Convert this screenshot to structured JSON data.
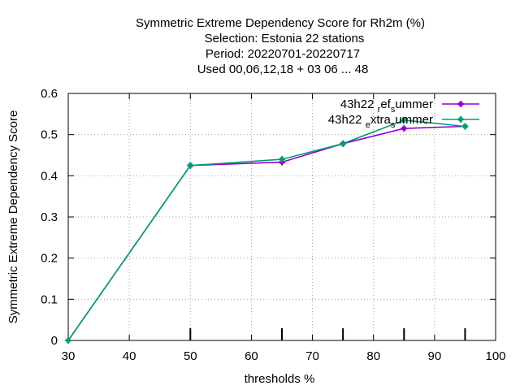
{
  "chart_data": {
    "type": "line",
    "title_lines": [
      "Symmetric Extreme Dependency Score  for Rh2m (%)",
      "Selection: Estonia      22 stations",
      "Period: 20220701-20220717",
      "Used  00,06,12,18  + 03 06 ... 48"
    ],
    "xlabel": "thresholds %",
    "ylabel": "Symmetric Extreme Dependency Score",
    "xlim": [
      30,
      100
    ],
    "ylim": [
      0,
      0.6
    ],
    "xticks": [
      30,
      40,
      50,
      60,
      70,
      80,
      90,
      100
    ],
    "yticks": [
      0,
      0.1,
      0.2,
      0.3,
      0.4,
      0.5,
      0.6
    ],
    "ytick_labels": [
      "0",
      "0.1",
      "0.2",
      "0.3",
      "0.4",
      "0.5",
      "0.6"
    ],
    "threshold_marks": [
      50,
      65,
      75,
      85,
      95
    ],
    "grid": true,
    "legend_position": "top-right",
    "series": [
      {
        "legend_main": "43h22",
        "legend_parts": [
          "r",
          "ef",
          "s",
          "ummer"
        ],
        "color": "#9400d3",
        "x": [
          30,
          50,
          65,
          75,
          85,
          95
        ],
        "y": [
          0.0,
          0.425,
          0.433,
          0.478,
          0.515,
          0.52
        ]
      },
      {
        "legend_main": "43h22",
        "legend_parts": [
          "e",
          "xtra",
          "s",
          "ummer"
        ],
        "color": "#009e73",
        "x": [
          30,
          50,
          65,
          75,
          85,
          95
        ],
        "y": [
          0.0,
          0.425,
          0.44,
          0.478,
          0.535,
          0.52
        ]
      }
    ]
  }
}
